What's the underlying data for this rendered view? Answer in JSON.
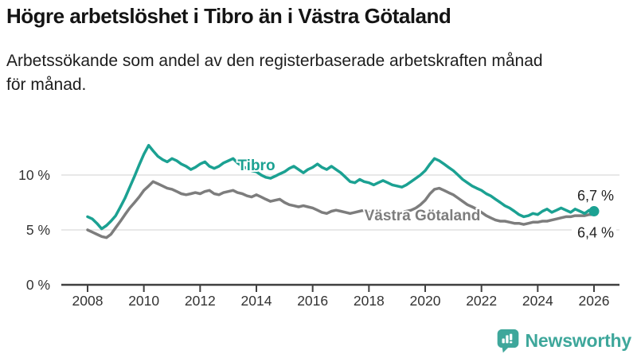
{
  "header": {
    "title": "Högre arbetslöshet i Tibro än i Västra Götaland",
    "subtitle_line1": "Arbetssökande som andel av den registerbaserade arbetskraften månad",
    "subtitle_line2": "för månad."
  },
  "footer": {
    "brand": "Newsworthy"
  },
  "colors": {
    "tibro": "#1BA192",
    "vastra_gotaland": "#7D7D7D",
    "grid": "#D9D9D9",
    "axis": "#404040",
    "text": "#333333",
    "end_label": "#222222",
    "brand": "#3EA79B",
    "background": "#FFFFFF"
  },
  "chart_data": {
    "type": "line",
    "title": "Högre arbetslöshet i Tibro än i Västra Götaland",
    "subtitle": "Arbetssökande som andel av den registerbaserade arbetskraften månad för månad.",
    "ylabel": "",
    "xlabel": "",
    "unit": "%",
    "grid": "horizontal",
    "legend_position": "inline-labels",
    "x_axis": {
      "range": [
        2008,
        2026
      ],
      "ticks": [
        2008,
        2010,
        2012,
        2014,
        2016,
        2018,
        2020,
        2022,
        2024,
        2026
      ],
      "tick_labels": [
        "2008",
        "2010",
        "2012",
        "2014",
        "2016",
        "2018",
        "2020",
        "2022",
        "2024",
        "2026"
      ]
    },
    "y_axis": {
      "range": [
        0,
        13.5
      ],
      "ticks": [
        {
          "value": 0,
          "label": "0 %"
        },
        {
          "value": 5,
          "label": "5 %"
        },
        {
          "value": 10,
          "label": "10 %"
        }
      ]
    },
    "series": [
      {
        "id": "tibro",
        "name": "Tibro",
        "color": "#1BA192",
        "end_label": "6,7 %",
        "end_value": 6.7,
        "has_end_dot": true,
        "label_pos": {
          "year": 2014.0,
          "value": 10.43
        },
        "points": [
          [
            2008.0,
            6.2
          ],
          [
            2008.17,
            6.0
          ],
          [
            2008.33,
            5.6
          ],
          [
            2008.5,
            5.1
          ],
          [
            2008.67,
            5.4
          ],
          [
            2008.83,
            5.8
          ],
          [
            2009.0,
            6.3
          ],
          [
            2009.17,
            7.1
          ],
          [
            2009.33,
            7.9
          ],
          [
            2009.5,
            8.9
          ],
          [
            2009.67,
            9.9
          ],
          [
            2009.83,
            10.9
          ],
          [
            2010.0,
            11.9
          ],
          [
            2010.17,
            12.7
          ],
          [
            2010.33,
            12.2
          ],
          [
            2010.5,
            11.7
          ],
          [
            2010.67,
            11.4
          ],
          [
            2010.83,
            11.2
          ],
          [
            2011.0,
            11.5
          ],
          [
            2011.17,
            11.3
          ],
          [
            2011.33,
            11.0
          ],
          [
            2011.5,
            10.8
          ],
          [
            2011.67,
            10.5
          ],
          [
            2011.83,
            10.7
          ],
          [
            2012.0,
            11.0
          ],
          [
            2012.17,
            11.2
          ],
          [
            2012.33,
            10.8
          ],
          [
            2012.5,
            10.6
          ],
          [
            2012.67,
            10.8
          ],
          [
            2012.83,
            11.1
          ],
          [
            2013.0,
            11.3
          ],
          [
            2013.17,
            11.5
          ],
          [
            2013.33,
            11.1
          ],
          [
            2013.5,
            10.8
          ],
          [
            2013.67,
            10.6
          ],
          [
            2013.83,
            10.4
          ],
          [
            2014.0,
            10.3
          ],
          [
            2014.17,
            10.0
          ],
          [
            2014.33,
            9.8
          ],
          [
            2014.5,
            9.7
          ],
          [
            2014.67,
            9.9
          ],
          [
            2014.83,
            10.1
          ],
          [
            2015.0,
            10.3
          ],
          [
            2015.17,
            10.6
          ],
          [
            2015.33,
            10.8
          ],
          [
            2015.5,
            10.5
          ],
          [
            2015.67,
            10.2
          ],
          [
            2015.83,
            10.5
          ],
          [
            2016.0,
            10.7
          ],
          [
            2016.17,
            11.0
          ],
          [
            2016.33,
            10.7
          ],
          [
            2016.5,
            10.5
          ],
          [
            2016.67,
            10.8
          ],
          [
            2016.83,
            10.5
          ],
          [
            2017.0,
            10.2
          ],
          [
            2017.17,
            9.8
          ],
          [
            2017.33,
            9.4
          ],
          [
            2017.5,
            9.3
          ],
          [
            2017.67,
            9.6
          ],
          [
            2017.83,
            9.4
          ],
          [
            2018.0,
            9.3
          ],
          [
            2018.17,
            9.1
          ],
          [
            2018.33,
            9.3
          ],
          [
            2018.5,
            9.5
          ],
          [
            2018.67,
            9.3
          ],
          [
            2018.83,
            9.1
          ],
          [
            2019.0,
            9.0
          ],
          [
            2019.17,
            8.9
          ],
          [
            2019.33,
            9.1
          ],
          [
            2019.5,
            9.4
          ],
          [
            2019.67,
            9.7
          ],
          [
            2019.83,
            10.0
          ],
          [
            2020.0,
            10.4
          ],
          [
            2020.17,
            11.0
          ],
          [
            2020.33,
            11.5
          ],
          [
            2020.5,
            11.3
          ],
          [
            2020.67,
            11.0
          ],
          [
            2020.83,
            10.7
          ],
          [
            2021.0,
            10.4
          ],
          [
            2021.17,
            10.0
          ],
          [
            2021.33,
            9.6
          ],
          [
            2021.5,
            9.3
          ],
          [
            2021.67,
            9.0
          ],
          [
            2021.83,
            8.8
          ],
          [
            2022.0,
            8.6
          ],
          [
            2022.17,
            8.3
          ],
          [
            2022.33,
            8.1
          ],
          [
            2022.5,
            7.8
          ],
          [
            2022.67,
            7.5
          ],
          [
            2022.83,
            7.2
          ],
          [
            2023.0,
            7.0
          ],
          [
            2023.17,
            6.7
          ],
          [
            2023.33,
            6.4
          ],
          [
            2023.5,
            6.2
          ],
          [
            2023.67,
            6.3
          ],
          [
            2023.83,
            6.5
          ],
          [
            2024.0,
            6.4
          ],
          [
            2024.17,
            6.7
          ],
          [
            2024.33,
            6.9
          ],
          [
            2024.5,
            6.6
          ],
          [
            2024.67,
            6.8
          ],
          [
            2024.83,
            7.0
          ],
          [
            2025.0,
            6.8
          ],
          [
            2025.17,
            6.6
          ],
          [
            2025.33,
            6.9
          ],
          [
            2025.5,
            6.7
          ],
          [
            2025.67,
            6.5
          ],
          [
            2025.83,
            6.8
          ],
          [
            2026.0,
            6.7
          ]
        ]
      },
      {
        "id": "vastra-gotaland",
        "name": "Västra Götaland",
        "color": "#7D7D7D",
        "end_label": "6,4 %",
        "end_value": 6.4,
        "has_end_dot": false,
        "label_pos": {
          "year": 2019.9,
          "value": 5.87
        },
        "points": [
          [
            2008.0,
            5.0
          ],
          [
            2008.17,
            4.8
          ],
          [
            2008.33,
            4.6
          ],
          [
            2008.5,
            4.4
          ],
          [
            2008.67,
            4.3
          ],
          [
            2008.83,
            4.6
          ],
          [
            2009.0,
            5.2
          ],
          [
            2009.17,
            5.8
          ],
          [
            2009.33,
            6.4
          ],
          [
            2009.5,
            7.0
          ],
          [
            2009.67,
            7.5
          ],
          [
            2009.83,
            8.0
          ],
          [
            2010.0,
            8.6
          ],
          [
            2010.17,
            9.0
          ],
          [
            2010.33,
            9.4
          ],
          [
            2010.5,
            9.2
          ],
          [
            2010.67,
            9.0
          ],
          [
            2010.83,
            8.8
          ],
          [
            2011.0,
            8.7
          ],
          [
            2011.17,
            8.5
          ],
          [
            2011.33,
            8.3
          ],
          [
            2011.5,
            8.2
          ],
          [
            2011.67,
            8.3
          ],
          [
            2011.83,
            8.4
          ],
          [
            2012.0,
            8.3
          ],
          [
            2012.17,
            8.5
          ],
          [
            2012.33,
            8.6
          ],
          [
            2012.5,
            8.3
          ],
          [
            2012.67,
            8.2
          ],
          [
            2012.83,
            8.4
          ],
          [
            2013.0,
            8.5
          ],
          [
            2013.17,
            8.6
          ],
          [
            2013.33,
            8.4
          ],
          [
            2013.5,
            8.3
          ],
          [
            2013.67,
            8.1
          ],
          [
            2013.83,
            8.0
          ],
          [
            2014.0,
            8.2
          ],
          [
            2014.17,
            8.0
          ],
          [
            2014.33,
            7.8
          ],
          [
            2014.5,
            7.6
          ],
          [
            2014.67,
            7.7
          ],
          [
            2014.83,
            7.8
          ],
          [
            2015.0,
            7.5
          ],
          [
            2015.17,
            7.3
          ],
          [
            2015.33,
            7.2
          ],
          [
            2015.5,
            7.1
          ],
          [
            2015.67,
            7.2
          ],
          [
            2015.83,
            7.1
          ],
          [
            2016.0,
            7.0
          ],
          [
            2016.17,
            6.8
          ],
          [
            2016.33,
            6.6
          ],
          [
            2016.5,
            6.5
          ],
          [
            2016.67,
            6.7
          ],
          [
            2016.83,
            6.8
          ],
          [
            2017.0,
            6.7
          ],
          [
            2017.17,
            6.6
          ],
          [
            2017.33,
            6.5
          ],
          [
            2017.5,
            6.6
          ],
          [
            2017.67,
            6.7
          ],
          [
            2017.83,
            6.8
          ],
          [
            2018.0,
            6.6
          ],
          [
            2018.17,
            6.5
          ],
          [
            2018.33,
            6.4
          ],
          [
            2018.5,
            6.3
          ],
          [
            2018.67,
            6.4
          ],
          [
            2018.83,
            6.5
          ],
          [
            2019.0,
            6.5
          ],
          [
            2019.17,
            6.6
          ],
          [
            2019.33,
            6.7
          ],
          [
            2019.5,
            6.8
          ],
          [
            2019.67,
            7.0
          ],
          [
            2019.83,
            7.3
          ],
          [
            2020.0,
            7.7
          ],
          [
            2020.17,
            8.3
          ],
          [
            2020.33,
            8.7
          ],
          [
            2020.5,
            8.8
          ],
          [
            2020.67,
            8.6
          ],
          [
            2020.83,
            8.4
          ],
          [
            2021.0,
            8.2
          ],
          [
            2021.17,
            7.9
          ],
          [
            2021.33,
            7.6
          ],
          [
            2021.5,
            7.3
          ],
          [
            2021.67,
            7.1
          ],
          [
            2021.83,
            6.9
          ],
          [
            2022.0,
            6.6
          ],
          [
            2022.17,
            6.3
          ],
          [
            2022.33,
            6.1
          ],
          [
            2022.5,
            5.9
          ],
          [
            2022.67,
            5.8
          ],
          [
            2022.83,
            5.8
          ],
          [
            2023.0,
            5.7
          ],
          [
            2023.17,
            5.6
          ],
          [
            2023.33,
            5.6
          ],
          [
            2023.5,
            5.5
          ],
          [
            2023.67,
            5.6
          ],
          [
            2023.83,
            5.7
          ],
          [
            2024.0,
            5.7
          ],
          [
            2024.17,
            5.8
          ],
          [
            2024.33,
            5.8
          ],
          [
            2024.5,
            5.9
          ],
          [
            2024.67,
            6.0
          ],
          [
            2024.83,
            6.1
          ],
          [
            2025.0,
            6.2
          ],
          [
            2025.17,
            6.2
          ],
          [
            2025.33,
            6.3
          ],
          [
            2025.5,
            6.3
          ],
          [
            2025.67,
            6.3
          ],
          [
            2025.83,
            6.4
          ],
          [
            2026.0,
            6.4
          ]
        ]
      }
    ]
  }
}
